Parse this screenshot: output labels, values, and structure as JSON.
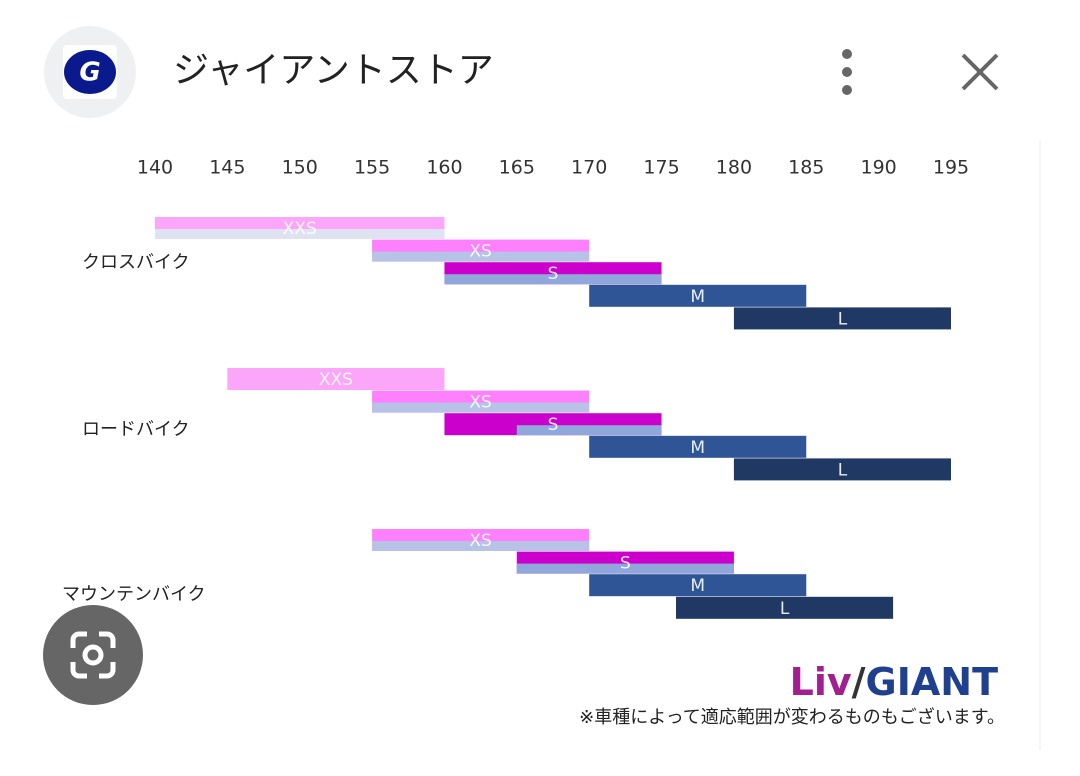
{
  "header": {
    "title": "ジャイアントストア"
  },
  "chart_data": {
    "type": "range",
    "xlim": [
      140,
      195
    ],
    "xticks": [
      140,
      145,
      150,
      155,
      160,
      165,
      170,
      175,
      180,
      185,
      190,
      195
    ],
    "groups": [
      {
        "name": "クロスバイク",
        "bars": [
          {
            "label": "XXS",
            "range": [
              140,
              160
            ],
            "color": "#fba6f8",
            "sub": [
              140,
              160
            ],
            "sub_color": "#dfe3f1"
          },
          {
            "label": "XS",
            "range": [
              155,
              170
            ],
            "color": "#ff80ff",
            "sub": [
              155,
              170
            ],
            "sub_color": "#b7c3e6"
          },
          {
            "label": "S",
            "range": [
              160,
              175
            ],
            "color": "#cc00cc",
            "sub": [
              160,
              175
            ],
            "sub_color": "#8fa7da"
          },
          {
            "label": "M",
            "range": [
              170,
              185
            ],
            "color": "#2f5597"
          },
          {
            "label": "L",
            "range": [
              180,
              195
            ],
            "color": "#1f3864"
          }
        ]
      },
      {
        "name": "ロードバイク",
        "bars": [
          {
            "label": "XXS",
            "range": [
              145,
              160
            ],
            "color": "#fba6f8"
          },
          {
            "label": "XS",
            "range": [
              155,
              170
            ],
            "color": "#ff80ff",
            "sub": [
              155,
              170
            ],
            "sub_color": "#b7c3e6"
          },
          {
            "label": "S",
            "range": [
              160,
              175
            ],
            "color": "#cc00cc",
            "sub": [
              165,
              175
            ],
            "sub_color": "#8fa7da"
          },
          {
            "label": "M",
            "range": [
              170,
              185
            ],
            "color": "#2f5597"
          },
          {
            "label": "L",
            "range": [
              180,
              195
            ],
            "color": "#1f3864"
          }
        ]
      },
      {
        "name": "マウンテンバイク",
        "bars": [
          {
            "label": "XS",
            "range": [
              155,
              170
            ],
            "color": "#ff80ff",
            "sub": [
              155,
              170
            ],
            "sub_color": "#b7c3e6"
          },
          {
            "label": "S",
            "range": [
              165,
              180
            ],
            "color": "#cc00cc",
            "sub": [
              165,
              180
            ],
            "sub_color": "#8fa7da"
          },
          {
            "label": "M",
            "range": [
              170,
              185
            ],
            "color": "#2f5597"
          },
          {
            "label": "L",
            "range": [
              176,
              191
            ],
            "color": "#1f3864"
          }
        ]
      }
    ]
  },
  "brand": {
    "liv": "Liv",
    "slash": "/",
    "giant": "GIANT"
  },
  "note": "※車種によって適応範囲が変わるものもございます。"
}
